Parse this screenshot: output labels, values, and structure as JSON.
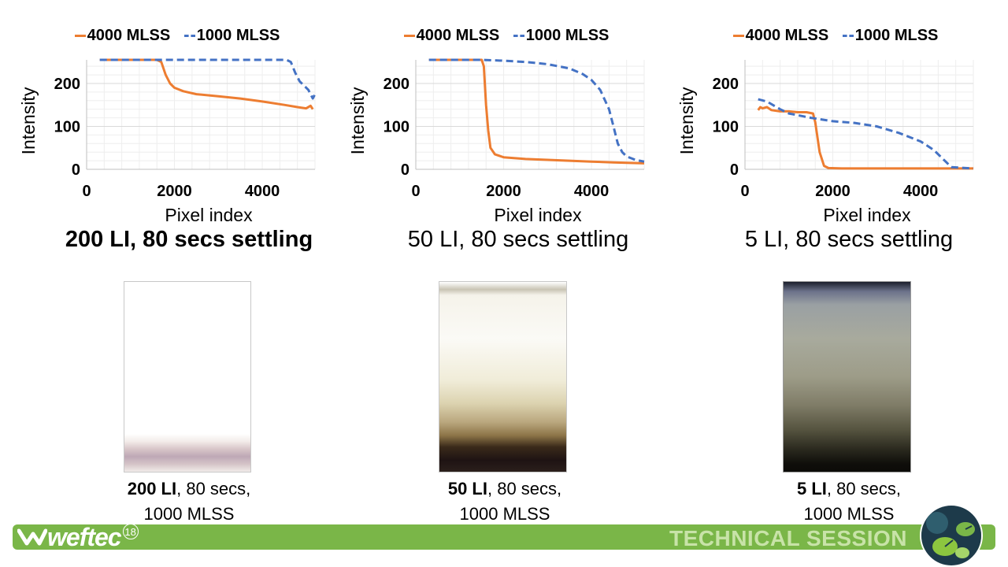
{
  "chart_data": [
    {
      "type": "line",
      "xlabel": "Pixel index",
      "ylabel": "Intensity",
      "xlim": [
        0,
        5200
      ],
      "ylim": [
        0,
        255
      ],
      "x_ticks": [
        0,
        2000,
        4000
      ],
      "y_ticks": [
        0,
        100,
        200
      ],
      "grid": true,
      "legend_position": "top",
      "caption": "200 LI, 80 secs settling",
      "caption_bold": true,
      "series": [
        {
          "name": "4000 MLSS",
          "color": "#ed7d31",
          "dash": "solid",
          "points": [
            [
              300,
              255
            ],
            [
              1600,
              255
            ],
            [
              1700,
              250
            ],
            [
              1800,
              220
            ],
            [
              1900,
              200
            ],
            [
              2000,
              190
            ],
            [
              2200,
              182
            ],
            [
              2500,
              175
            ],
            [
              3000,
              170
            ],
            [
              3500,
              165
            ],
            [
              4000,
              158
            ],
            [
              4500,
              150
            ],
            [
              4800,
              145
            ],
            [
              5000,
              142
            ],
            [
              5100,
              148
            ],
            [
              5150,
              140
            ]
          ]
        },
        {
          "name": "1000 MLSS",
          "color": "#4472c4",
          "dash": "dashed",
          "points": [
            [
              300,
              255
            ],
            [
              4550,
              255
            ],
            [
              4650,
              250
            ],
            [
              4750,
              225
            ],
            [
              4850,
              205
            ],
            [
              4950,
              195
            ],
            [
              5050,
              185
            ],
            [
              5100,
              175
            ],
            [
              5150,
              165
            ],
            [
              5200,
              175
            ]
          ]
        }
      ]
    },
    {
      "type": "line",
      "xlabel": "Pixel index",
      "ylabel": "Intensity",
      "xlim": [
        0,
        5200
      ],
      "ylim": [
        0,
        255
      ],
      "x_ticks": [
        0,
        2000,
        4000
      ],
      "y_ticks": [
        0,
        100,
        200
      ],
      "grid": true,
      "legend_position": "top",
      "caption": "50 LI, 80 secs settling",
      "caption_bold": false,
      "series": [
        {
          "name": "4000 MLSS",
          "color": "#ed7d31",
          "dash": "solid",
          "points": [
            [
              300,
              255
            ],
            [
              1500,
              255
            ],
            [
              1550,
              240
            ],
            [
              1600,
              150
            ],
            [
              1650,
              90
            ],
            [
              1700,
              50
            ],
            [
              1800,
              35
            ],
            [
              2000,
              28
            ],
            [
              2500,
              24
            ],
            [
              3000,
              22
            ],
            [
              3500,
              20
            ],
            [
              4000,
              18
            ],
            [
              4500,
              16
            ],
            [
              5200,
              14
            ]
          ]
        },
        {
          "name": "1000 MLSS",
          "color": "#4472c4",
          "dash": "dashed",
          "points": [
            [
              300,
              255
            ],
            [
              1500,
              255
            ],
            [
              2000,
              253
            ],
            [
              2500,
              250
            ],
            [
              3000,
              245
            ],
            [
              3500,
              235
            ],
            [
              3800,
              222
            ],
            [
              4000,
              208
            ],
            [
              4200,
              185
            ],
            [
              4400,
              140
            ],
            [
              4500,
              100
            ],
            [
              4600,
              60
            ],
            [
              4700,
              40
            ],
            [
              4800,
              30
            ],
            [
              5000,
              22
            ],
            [
              5200,
              18
            ]
          ]
        }
      ]
    },
    {
      "type": "line",
      "xlabel": "Pixel index",
      "ylabel": "Intensity",
      "xlim": [
        0,
        5200
      ],
      "ylim": [
        0,
        255
      ],
      "x_ticks": [
        0,
        2000,
        4000
      ],
      "y_ticks": [
        0,
        100,
        200
      ],
      "grid": true,
      "legend_position": "top",
      "caption": "5 LI, 80 secs settling",
      "caption_bold": false,
      "series": [
        {
          "name": "4000 MLSS",
          "color": "#ed7d31",
          "dash": "solid",
          "points": [
            [
              300,
              138
            ],
            [
              350,
              145
            ],
            [
              400,
              142
            ],
            [
              500,
              145
            ],
            [
              600,
              138
            ],
            [
              800,
              135
            ],
            [
              1000,
              135
            ],
            [
              1200,
              133
            ],
            [
              1400,
              133
            ],
            [
              1550,
              130
            ],
            [
              1600,
              110
            ],
            [
              1700,
              40
            ],
            [
              1800,
              8
            ],
            [
              1900,
              3
            ],
            [
              2200,
              2
            ],
            [
              3000,
              2
            ],
            [
              4000,
              2
            ],
            [
              5200,
              2
            ]
          ]
        },
        {
          "name": "1000 MLSS",
          "color": "#4472c4",
          "dash": "dashed",
          "points": [
            [
              300,
              163
            ],
            [
              500,
              158
            ],
            [
              800,
              140
            ],
            [
              1000,
              130
            ],
            [
              1500,
              120
            ],
            [
              2000,
              112
            ],
            [
              2500,
              108
            ],
            [
              3000,
              100
            ],
            [
              3500,
              85
            ],
            [
              4000,
              65
            ],
            [
              4300,
              45
            ],
            [
              4500,
              25
            ],
            [
              4700,
              5
            ],
            [
              5200,
              2
            ]
          ]
        }
      ]
    }
  ],
  "photos": [
    {
      "caption_bold": "200 LI",
      "caption_rest": ", 80 secs,",
      "caption_line2": "1000 MLSS"
    },
    {
      "caption_bold": "50 LI",
      "caption_rest": ", 80 secs,",
      "caption_line2": "1000 MLSS"
    },
    {
      "caption_bold": "5 LI",
      "caption_rest": ", 80 secs,",
      "caption_line2": "1000 MLSS"
    }
  ],
  "footer": {
    "logo_text": "weftec",
    "logo_superscript": "18",
    "session_label": "TECHNICAL SESSION",
    "bar_color": "#7ab648"
  }
}
